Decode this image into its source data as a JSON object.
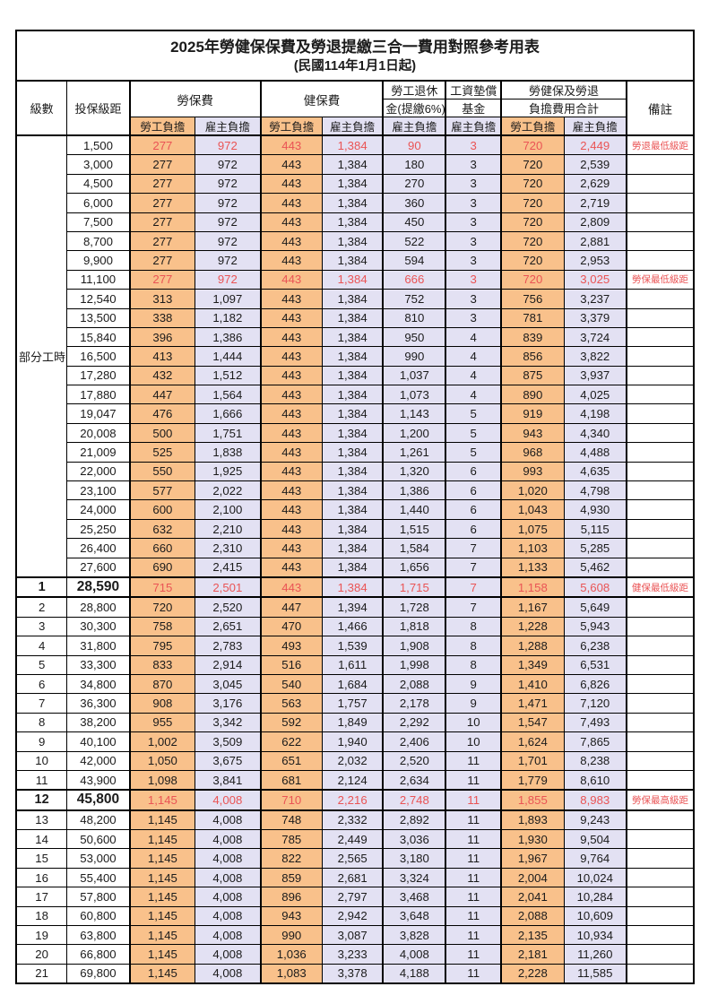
{
  "title": "2025年勞健保保費及勞退提繳三合一費用對照參考用表",
  "subtitle": "(民國114年1月1日起)",
  "colors": {
    "employee_share_bg": "#F9C18B",
    "employer_share_bg": "#E3E1F3",
    "highlight_red": "#EA5455",
    "border": "#000000"
  },
  "headers": {
    "level": "級數",
    "bracket": "投保級距",
    "labor_insurance": "勞保費",
    "health_insurance": "健保費",
    "pension_line1": "勞工退休",
    "pension_line2": "金(提繳6%)",
    "wage_fund_line1": "工資墊償",
    "wage_fund_line2": "基金",
    "total_line1": "勞健保及勞退",
    "total_line2": "負擔費用合計",
    "note": "備註",
    "employee_share": "勞工負擔",
    "employer_share": "雇主負擔"
  },
  "part_time_label": "部分工時",
  "part_time_rowspan": 23,
  "rows": [
    {
      "level": "",
      "bracket": "1,500",
      "labor_w": "277",
      "labor_e": "972",
      "health_w": "443",
      "health_e": "1,384",
      "pension_e": "90",
      "fund_e": "3",
      "total_w": "720",
      "total_e": "2,449",
      "note": "勞退最低級距",
      "red": true,
      "special": false
    },
    {
      "level": "",
      "bracket": "3,000",
      "labor_w": "277",
      "labor_e": "972",
      "health_w": "443",
      "health_e": "1,384",
      "pension_e": "180",
      "fund_e": "3",
      "total_w": "720",
      "total_e": "2,539",
      "note": "",
      "red": false,
      "special": false
    },
    {
      "level": "",
      "bracket": "4,500",
      "labor_w": "277",
      "labor_e": "972",
      "health_w": "443",
      "health_e": "1,384",
      "pension_e": "270",
      "fund_e": "3",
      "total_w": "720",
      "total_e": "2,629",
      "note": "",
      "red": false,
      "special": false
    },
    {
      "level": "",
      "bracket": "6,000",
      "labor_w": "277",
      "labor_e": "972",
      "health_w": "443",
      "health_e": "1,384",
      "pension_e": "360",
      "fund_e": "3",
      "total_w": "720",
      "total_e": "2,719",
      "note": "",
      "red": false,
      "special": false
    },
    {
      "level": "",
      "bracket": "7,500",
      "labor_w": "277",
      "labor_e": "972",
      "health_w": "443",
      "health_e": "1,384",
      "pension_e": "450",
      "fund_e": "3",
      "total_w": "720",
      "total_e": "2,809",
      "note": "",
      "red": false,
      "special": false
    },
    {
      "level": "",
      "bracket": "8,700",
      "labor_w": "277",
      "labor_e": "972",
      "health_w": "443",
      "health_e": "1,384",
      "pension_e": "522",
      "fund_e": "3",
      "total_w": "720",
      "total_e": "2,881",
      "note": "",
      "red": false,
      "special": false
    },
    {
      "level": "",
      "bracket": "9,900",
      "labor_w": "277",
      "labor_e": "972",
      "health_w": "443",
      "health_e": "1,384",
      "pension_e": "594",
      "fund_e": "3",
      "total_w": "720",
      "total_e": "2,953",
      "note": "",
      "red": false,
      "special": false
    },
    {
      "level": "",
      "bracket": "11,100",
      "labor_w": "277",
      "labor_e": "972",
      "health_w": "443",
      "health_e": "1,384",
      "pension_e": "666",
      "fund_e": "3",
      "total_w": "720",
      "total_e": "3,025",
      "note": "勞保最低級距",
      "red": true,
      "special": false
    },
    {
      "level": "",
      "bracket": "12,540",
      "labor_w": "313",
      "labor_e": "1,097",
      "health_w": "443",
      "health_e": "1,384",
      "pension_e": "752",
      "fund_e": "3",
      "total_w": "756",
      "total_e": "3,237",
      "note": "",
      "red": false,
      "special": false
    },
    {
      "level": "",
      "bracket": "13,500",
      "labor_w": "338",
      "labor_e": "1,182",
      "health_w": "443",
      "health_e": "1,384",
      "pension_e": "810",
      "fund_e": "3",
      "total_w": "781",
      "total_e": "3,379",
      "note": "",
      "red": false,
      "special": false
    },
    {
      "level": "",
      "bracket": "15,840",
      "labor_w": "396",
      "labor_e": "1,386",
      "health_w": "443",
      "health_e": "1,384",
      "pension_e": "950",
      "fund_e": "4",
      "total_w": "839",
      "total_e": "3,724",
      "note": "",
      "red": false,
      "special": false
    },
    {
      "level": "",
      "bracket": "16,500",
      "labor_w": "413",
      "labor_e": "1,444",
      "health_w": "443",
      "health_e": "1,384",
      "pension_e": "990",
      "fund_e": "4",
      "total_w": "856",
      "total_e": "3,822",
      "note": "",
      "red": false,
      "special": false
    },
    {
      "level": "",
      "bracket": "17,280",
      "labor_w": "432",
      "labor_e": "1,512",
      "health_w": "443",
      "health_e": "1,384",
      "pension_e": "1,037",
      "fund_e": "4",
      "total_w": "875",
      "total_e": "3,937",
      "note": "",
      "red": false,
      "special": false
    },
    {
      "level": "",
      "bracket": "17,880",
      "labor_w": "447",
      "labor_e": "1,564",
      "health_w": "443",
      "health_e": "1,384",
      "pension_e": "1,073",
      "fund_e": "4",
      "total_w": "890",
      "total_e": "4,025",
      "note": "",
      "red": false,
      "special": false
    },
    {
      "level": "",
      "bracket": "19,047",
      "labor_w": "476",
      "labor_e": "1,666",
      "health_w": "443",
      "health_e": "1,384",
      "pension_e": "1,143",
      "fund_e": "5",
      "total_w": "919",
      "total_e": "4,198",
      "note": "",
      "red": false,
      "special": false
    },
    {
      "level": "",
      "bracket": "20,008",
      "labor_w": "500",
      "labor_e": "1,751",
      "health_w": "443",
      "health_e": "1,384",
      "pension_e": "1,200",
      "fund_e": "5",
      "total_w": "943",
      "total_e": "4,340",
      "note": "",
      "red": false,
      "special": false
    },
    {
      "level": "",
      "bracket": "21,009",
      "labor_w": "525",
      "labor_e": "1,838",
      "health_w": "443",
      "health_e": "1,384",
      "pension_e": "1,261",
      "fund_e": "5",
      "total_w": "968",
      "total_e": "4,488",
      "note": "",
      "red": false,
      "special": false
    },
    {
      "level": "",
      "bracket": "22,000",
      "labor_w": "550",
      "labor_e": "1,925",
      "health_w": "443",
      "health_e": "1,384",
      "pension_e": "1,320",
      "fund_e": "6",
      "total_w": "993",
      "total_e": "4,635",
      "note": "",
      "red": false,
      "special": false
    },
    {
      "level": "",
      "bracket": "23,100",
      "labor_w": "577",
      "labor_e": "2,022",
      "health_w": "443",
      "health_e": "1,384",
      "pension_e": "1,386",
      "fund_e": "6",
      "total_w": "1,020",
      "total_e": "4,798",
      "note": "",
      "red": false,
      "special": false
    },
    {
      "level": "",
      "bracket": "24,000",
      "labor_w": "600",
      "labor_e": "2,100",
      "health_w": "443",
      "health_e": "1,384",
      "pension_e": "1,440",
      "fund_e": "6",
      "total_w": "1,043",
      "total_e": "4,930",
      "note": "",
      "red": false,
      "special": false
    },
    {
      "level": "",
      "bracket": "25,250",
      "labor_w": "632",
      "labor_e": "2,210",
      "health_w": "443",
      "health_e": "1,384",
      "pension_e": "1,515",
      "fund_e": "6",
      "total_w": "1,075",
      "total_e": "5,115",
      "note": "",
      "red": false,
      "special": false
    },
    {
      "level": "",
      "bracket": "26,400",
      "labor_w": "660",
      "labor_e": "2,310",
      "health_w": "443",
      "health_e": "1,384",
      "pension_e": "1,584",
      "fund_e": "7",
      "total_w": "1,103",
      "total_e": "5,285",
      "note": "",
      "red": false,
      "special": false
    },
    {
      "level": "",
      "bracket": "27,600",
      "labor_w": "690",
      "labor_e": "2,415",
      "health_w": "443",
      "health_e": "1,384",
      "pension_e": "1,656",
      "fund_e": "7",
      "total_w": "1,133",
      "total_e": "5,462",
      "note": "",
      "red": false,
      "special": false
    },
    {
      "level": "1",
      "bracket": "28,590",
      "labor_w": "715",
      "labor_e": "2,501",
      "health_w": "443",
      "health_e": "1,384",
      "pension_e": "1,715",
      "fund_e": "7",
      "total_w": "1,158",
      "total_e": "5,608",
      "note": "健保最低級距",
      "red": true,
      "special": true
    },
    {
      "level": "2",
      "bracket": "28,800",
      "labor_w": "720",
      "labor_e": "2,520",
      "health_w": "447",
      "health_e": "1,394",
      "pension_e": "1,728",
      "fund_e": "7",
      "total_w": "1,167",
      "total_e": "5,649",
      "note": "",
      "red": false,
      "special": false
    },
    {
      "level": "3",
      "bracket": "30,300",
      "labor_w": "758",
      "labor_e": "2,651",
      "health_w": "470",
      "health_e": "1,466",
      "pension_e": "1,818",
      "fund_e": "8",
      "total_w": "1,228",
      "total_e": "5,943",
      "note": "",
      "red": false,
      "special": false
    },
    {
      "level": "4",
      "bracket": "31,800",
      "labor_w": "795",
      "labor_e": "2,783",
      "health_w": "493",
      "health_e": "1,539",
      "pension_e": "1,908",
      "fund_e": "8",
      "total_w": "1,288",
      "total_e": "6,238",
      "note": "",
      "red": false,
      "special": false
    },
    {
      "level": "5",
      "bracket": "33,300",
      "labor_w": "833",
      "labor_e": "2,914",
      "health_w": "516",
      "health_e": "1,611",
      "pension_e": "1,998",
      "fund_e": "8",
      "total_w": "1,349",
      "total_e": "6,531",
      "note": "",
      "red": false,
      "special": false
    },
    {
      "level": "6",
      "bracket": "34,800",
      "labor_w": "870",
      "labor_e": "3,045",
      "health_w": "540",
      "health_e": "1,684",
      "pension_e": "2,088",
      "fund_e": "9",
      "total_w": "1,410",
      "total_e": "6,826",
      "note": "",
      "red": false,
      "special": false
    },
    {
      "level": "7",
      "bracket": "36,300",
      "labor_w": "908",
      "labor_e": "3,176",
      "health_w": "563",
      "health_e": "1,757",
      "pension_e": "2,178",
      "fund_e": "9",
      "total_w": "1,471",
      "total_e": "7,120",
      "note": "",
      "red": false,
      "special": false
    },
    {
      "level": "8",
      "bracket": "38,200",
      "labor_w": "955",
      "labor_e": "3,342",
      "health_w": "592",
      "health_e": "1,849",
      "pension_e": "2,292",
      "fund_e": "10",
      "total_w": "1,547",
      "total_e": "7,493",
      "note": "",
      "red": false,
      "special": false
    },
    {
      "level": "9",
      "bracket": "40,100",
      "labor_w": "1,002",
      "labor_e": "3,509",
      "health_w": "622",
      "health_e": "1,940",
      "pension_e": "2,406",
      "fund_e": "10",
      "total_w": "1,624",
      "total_e": "7,865",
      "note": "",
      "red": false,
      "special": false
    },
    {
      "level": "10",
      "bracket": "42,000",
      "labor_w": "1,050",
      "labor_e": "3,675",
      "health_w": "651",
      "health_e": "2,032",
      "pension_e": "2,520",
      "fund_e": "11",
      "total_w": "1,701",
      "total_e": "8,238",
      "note": "",
      "red": false,
      "special": false
    },
    {
      "level": "11",
      "bracket": "43,900",
      "labor_w": "1,098",
      "labor_e": "3,841",
      "health_w": "681",
      "health_e": "2,124",
      "pension_e": "2,634",
      "fund_e": "11",
      "total_w": "1,779",
      "total_e": "8,610",
      "note": "",
      "red": false,
      "special": false
    },
    {
      "level": "12",
      "bracket": "45,800",
      "labor_w": "1,145",
      "labor_e": "4,008",
      "health_w": "710",
      "health_e": "2,216",
      "pension_e": "2,748",
      "fund_e": "11",
      "total_w": "1,855",
      "total_e": "8,983",
      "note": "勞保最高級距",
      "red": true,
      "special": true
    },
    {
      "level": "13",
      "bracket": "48,200",
      "labor_w": "1,145",
      "labor_e": "4,008",
      "health_w": "748",
      "health_e": "2,332",
      "pension_e": "2,892",
      "fund_e": "11",
      "total_w": "1,893",
      "total_e": "9,243",
      "note": "",
      "red": false,
      "special": false
    },
    {
      "level": "14",
      "bracket": "50,600",
      "labor_w": "1,145",
      "labor_e": "4,008",
      "health_w": "785",
      "health_e": "2,449",
      "pension_e": "3,036",
      "fund_e": "11",
      "total_w": "1,930",
      "total_e": "9,504",
      "note": "",
      "red": false,
      "special": false
    },
    {
      "level": "15",
      "bracket": "53,000",
      "labor_w": "1,145",
      "labor_e": "4,008",
      "health_w": "822",
      "health_e": "2,565",
      "pension_e": "3,180",
      "fund_e": "11",
      "total_w": "1,967",
      "total_e": "9,764",
      "note": "",
      "red": false,
      "special": false
    },
    {
      "level": "16",
      "bracket": "55,400",
      "labor_w": "1,145",
      "labor_e": "4,008",
      "health_w": "859",
      "health_e": "2,681",
      "pension_e": "3,324",
      "fund_e": "11",
      "total_w": "2,004",
      "total_e": "10,024",
      "note": "",
      "red": false,
      "special": false
    },
    {
      "level": "17",
      "bracket": "57,800",
      "labor_w": "1,145",
      "labor_e": "4,008",
      "health_w": "896",
      "health_e": "2,797",
      "pension_e": "3,468",
      "fund_e": "11",
      "total_w": "2,041",
      "total_e": "10,284",
      "note": "",
      "red": false,
      "special": false
    },
    {
      "level": "18",
      "bracket": "60,800",
      "labor_w": "1,145",
      "labor_e": "4,008",
      "health_w": "943",
      "health_e": "2,942",
      "pension_e": "3,648",
      "fund_e": "11",
      "total_w": "2,088",
      "total_e": "10,609",
      "note": "",
      "red": false,
      "special": false
    },
    {
      "level": "19",
      "bracket": "63,800",
      "labor_w": "1,145",
      "labor_e": "4,008",
      "health_w": "990",
      "health_e": "3,087",
      "pension_e": "3,828",
      "fund_e": "11",
      "total_w": "2,135",
      "total_e": "10,934",
      "note": "",
      "red": false,
      "special": false
    },
    {
      "level": "20",
      "bracket": "66,800",
      "labor_w": "1,145",
      "labor_e": "4,008",
      "health_w": "1,036",
      "health_e": "3,233",
      "pension_e": "4,008",
      "fund_e": "11",
      "total_w": "2,181",
      "total_e": "11,260",
      "note": "",
      "red": false,
      "special": false
    },
    {
      "level": "21",
      "bracket": "69,800",
      "labor_w": "1,145",
      "labor_e": "4,008",
      "health_w": "1,083",
      "health_e": "3,378",
      "pension_e": "4,188",
      "fund_e": "11",
      "total_w": "2,228",
      "total_e": "11,585",
      "note": "",
      "red": false,
      "special": false
    }
  ]
}
